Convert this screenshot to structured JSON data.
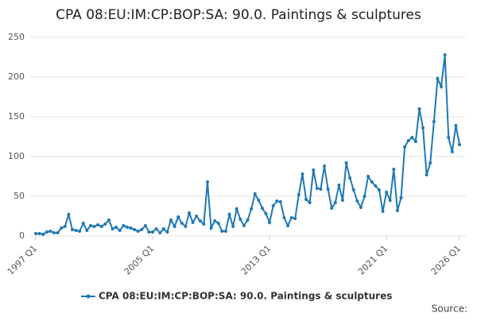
{
  "chart_data": {
    "type": "line",
    "title": "CPA 08:EU:IM:CP:BOP:SA: 90.0. Paintings & sculptures",
    "source": "Source:",
    "categories": [
      "1997 Q1",
      null,
      null,
      null,
      null,
      null,
      null,
      null,
      null,
      null,
      null,
      null,
      null,
      null,
      null,
      null,
      null,
      null,
      null,
      null,
      null,
      null,
      null,
      null,
      null,
      null,
      null,
      null,
      null,
      null,
      null,
      null,
      "2005 Q1",
      null,
      null,
      null,
      null,
      null,
      null,
      null,
      null,
      null,
      null,
      null,
      null,
      null,
      null,
      null,
      null,
      null,
      null,
      null,
      null,
      null,
      null,
      null,
      null,
      null,
      null,
      null,
      null,
      null,
      null,
      null,
      "2013 Q1",
      null,
      null,
      null,
      null,
      null,
      null,
      null,
      null,
      null,
      null,
      null,
      null,
      null,
      null,
      null,
      null,
      null,
      null,
      null,
      null,
      null,
      null,
      null,
      null,
      null,
      null,
      null,
      null,
      null,
      null,
      null,
      "2021 Q1",
      null,
      null,
      null,
      null,
      null,
      null,
      null,
      null,
      null,
      null,
      null,
      null,
      null,
      null,
      null,
      null,
      null,
      null,
      null,
      "2026 Q1"
    ],
    "series": [
      {
        "name": "CPA 08:EU:IM:CP:BOP:SA: 90.0. Paintings & sculptures",
        "color": "#1f78b4",
        "values": [
          3,
          3,
          2,
          5,
          6,
          4,
          4,
          10,
          12,
          27,
          8,
          7,
          6,
          16,
          7,
          13,
          12,
          14,
          12,
          15,
          20,
          9,
          11,
          7,
          13,
          11,
          10,
          8,
          6,
          8,
          13,
          5,
          5,
          9,
          4,
          9,
          5,
          20,
          12,
          24,
          16,
          12,
          29,
          17,
          25,
          19,
          15,
          68,
          10,
          19,
          16,
          6,
          6,
          27,
          12,
          34,
          21,
          13,
          20,
          34,
          53,
          45,
          35,
          28,
          17,
          38,
          44,
          43,
          23,
          13,
          23,
          22,
          52,
          78,
          46,
          42,
          83,
          60,
          59,
          88,
          59,
          35,
          42,
          64,
          45,
          92,
          73,
          58,
          44,
          36,
          50,
          75,
          68,
          63,
          58,
          31,
          55,
          45,
          84,
          32,
          48,
          112,
          120,
          124,
          119,
          160,
          136,
          77,
          92,
          144,
          198,
          188,
          228,
          124,
          106,
          139,
          115
        ]
      }
    ],
    "ylim": [
      0,
      250
    ],
    "yticks": [
      0,
      50,
      100,
      150,
      200,
      250
    ],
    "grid": true
  }
}
